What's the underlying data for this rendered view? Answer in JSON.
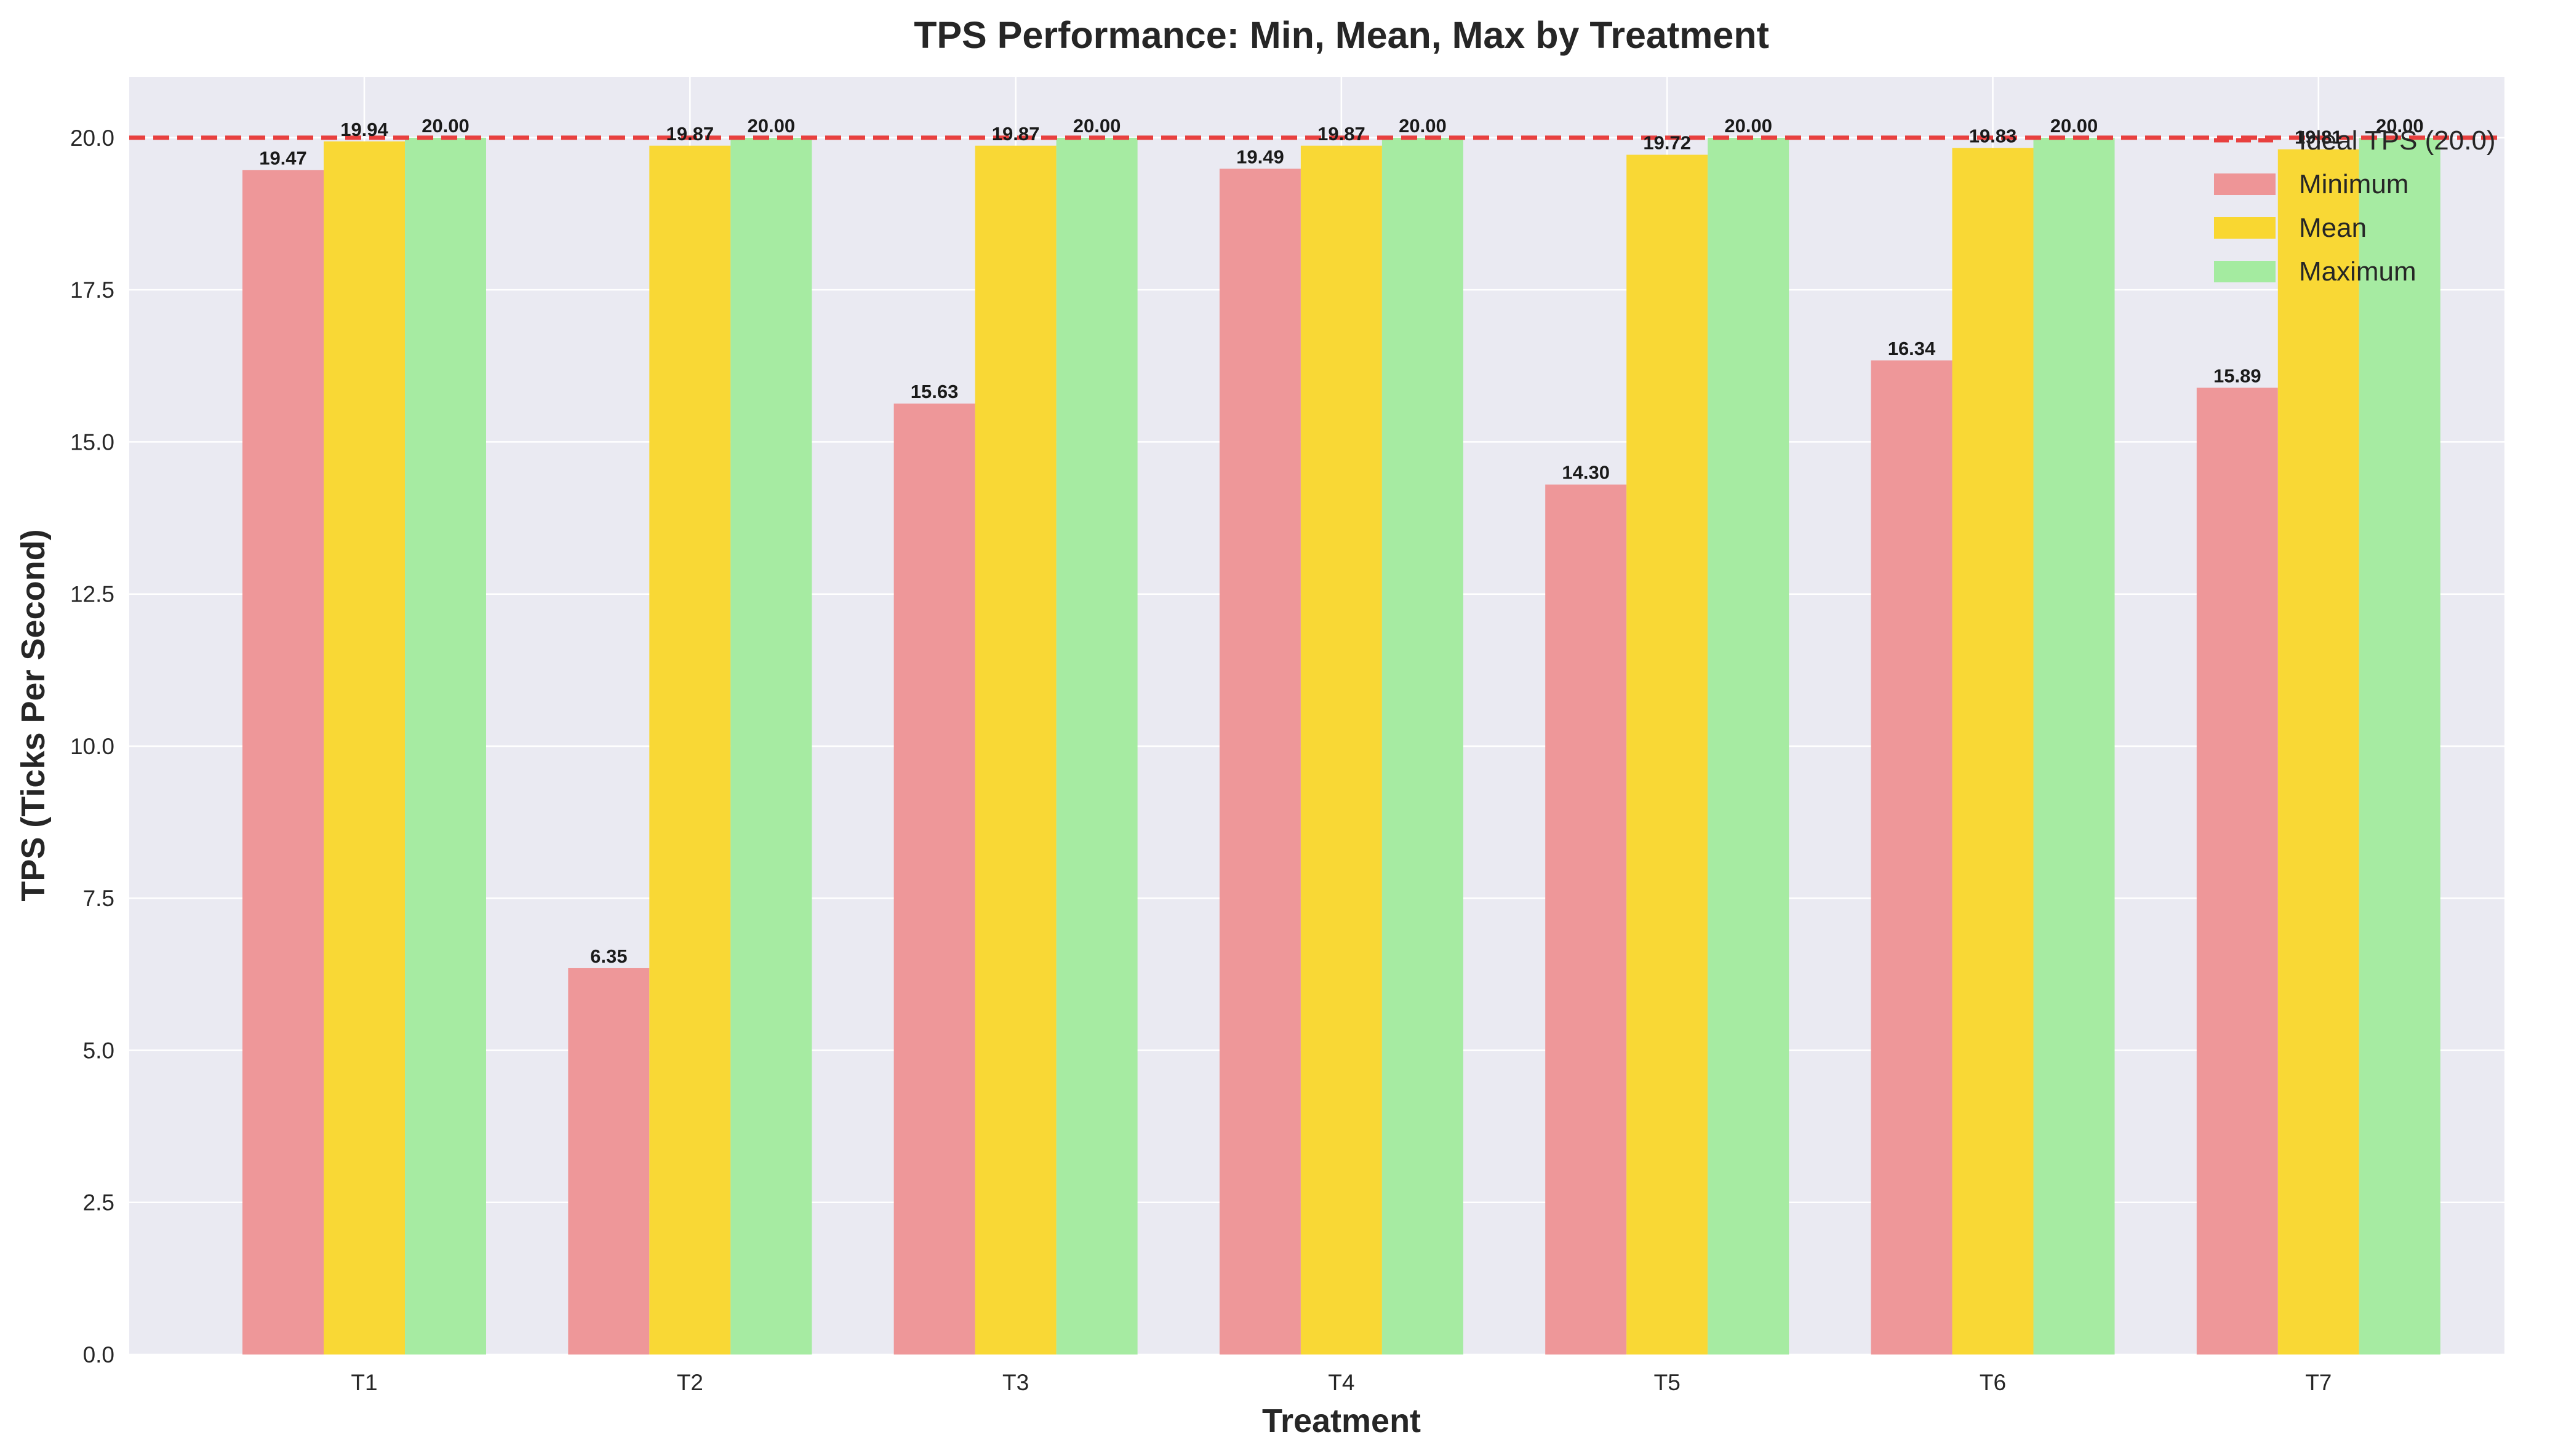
{
  "colors": {
    "plot_background": "#EAEAF2",
    "grid": "#FFFFFF",
    "text": "#262626",
    "ideal_line": "#E8403F"
  },
  "chart_data": {
    "type": "bar",
    "title": "TPS Performance: Min, Mean, Max by Treatment",
    "xlabel": "Treatment",
    "ylabel": "TPS (Ticks Per Second)",
    "ylim": [
      0,
      21
    ],
    "yticks": [
      0.0,
      2.5,
      5.0,
      7.5,
      10.0,
      12.5,
      15.0,
      17.5,
      20.0
    ],
    "ytick_labels": [
      "0.0",
      "2.5",
      "5.0",
      "7.5",
      "10.0",
      "12.5",
      "15.0",
      "17.5",
      "20.0"
    ],
    "categories": [
      "T1",
      "T2",
      "T3",
      "T4",
      "T5",
      "T6",
      "T7"
    ],
    "grid": true,
    "legend_position": "top-right",
    "series": [
      {
        "name": "Minimum",
        "color": "#EE9597",
        "values": [
          19.47,
          6.35,
          15.63,
          19.49,
          14.3,
          16.34,
          15.89
        ],
        "labels": [
          "19.47",
          "6.35",
          "15.63",
          "19.49",
          "14.30",
          "16.34",
          "15.89"
        ]
      },
      {
        "name": "Mean",
        "color": "#F9D731",
        "values": [
          19.94,
          19.87,
          19.87,
          19.87,
          19.72,
          19.83,
          19.81
        ],
        "labels": [
          "19.94",
          "19.87",
          "19.87",
          "19.87",
          "19.72",
          "19.83",
          "19.81"
        ]
      },
      {
        "name": "Maximum",
        "color": "#A4EBA0",
        "values": [
          20.0,
          20.0,
          20.0,
          20.0,
          20.0,
          20.0,
          20.0
        ],
        "labels": [
          "20.00",
          "20.00",
          "20.00",
          "20.00",
          "20.00",
          "20.00",
          "20.00"
        ]
      }
    ],
    "reference_line": {
      "value": 20.0,
      "label": "Ideal TPS (20.0)",
      "style": "dashed"
    }
  }
}
